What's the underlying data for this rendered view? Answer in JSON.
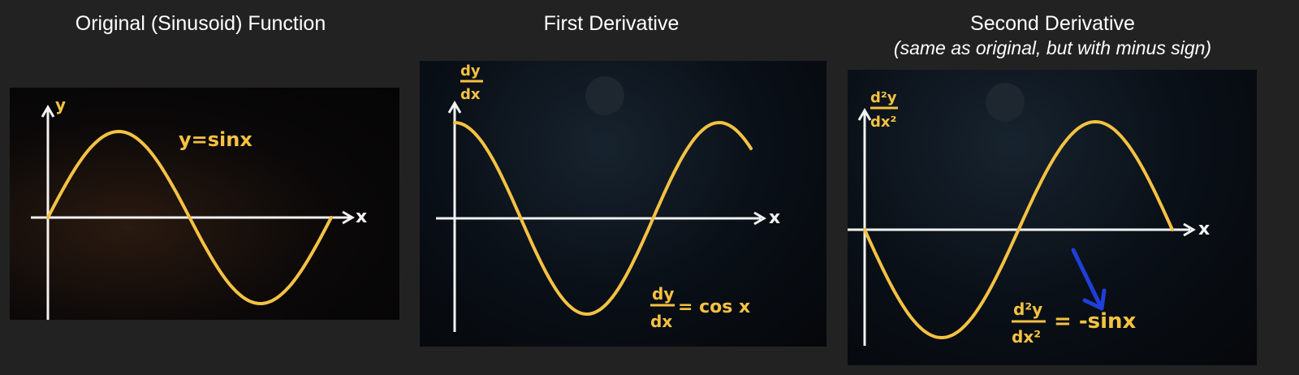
{
  "panels": [
    {
      "title": "Original (Sinusoid) Function",
      "subtitle": "",
      "y_axis_label": "y",
      "x_axis_label": "x",
      "curve_label": "y=sinx",
      "function": "sin"
    },
    {
      "title": "First Derivative",
      "subtitle": "",
      "y_axis_label_num": "dy",
      "y_axis_label_den": "dx",
      "x_axis_label": "x",
      "curve_label_num": "dy",
      "curve_label_den": "dx",
      "curve_label_rhs": "= cos x",
      "function": "cos"
    },
    {
      "title": "Second Derivative",
      "subtitle": "(same as original, but with minus sign)",
      "y_axis_label_num": "d²y",
      "y_axis_label_den": "dx²",
      "x_axis_label": "x",
      "curve_label_num": "d²y",
      "curve_label_den": "dx²",
      "curve_label_rhs": "= -sinx",
      "function": "-sin"
    }
  ],
  "colors": {
    "background": "#222222",
    "curve": "#f5c242",
    "axis": "#f2f2f2",
    "arrow": "#1f3fd8",
    "title_text": "#ffffff"
  }
}
